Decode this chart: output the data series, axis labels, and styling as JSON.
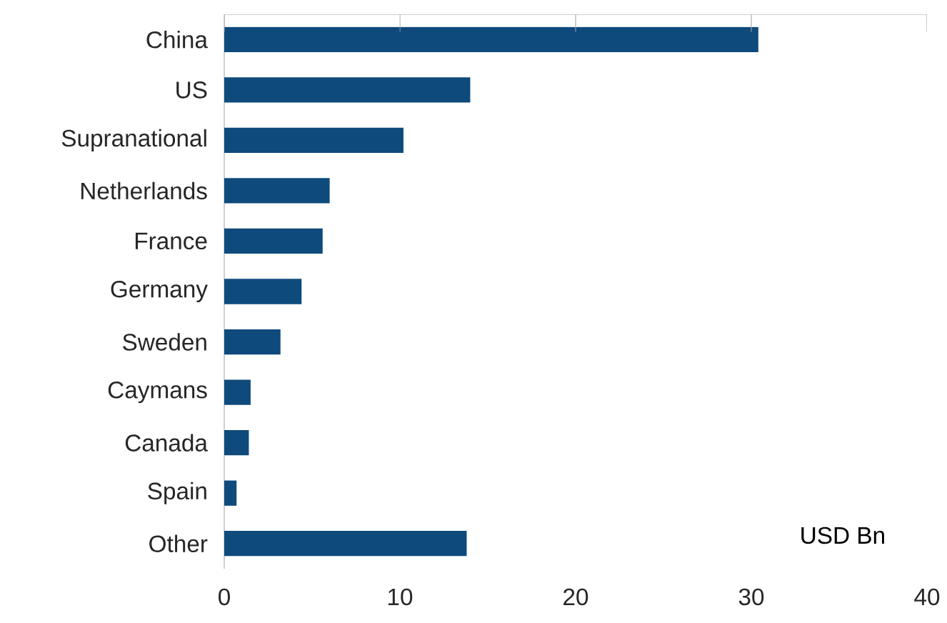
{
  "chart_data": {
    "type": "bar",
    "orientation": "horizontal",
    "xlabel": "USD Bn",
    "categories": [
      "China",
      "US",
      "Supranational",
      "Netherlands",
      "France",
      "Germany",
      "Sweden",
      "Caymans",
      "Canada",
      "Spain",
      "Other"
    ],
    "values": [
      30.4,
      14.0,
      10.2,
      6.0,
      5.6,
      4.4,
      3.2,
      1.5,
      1.4,
      0.7,
      13.8
    ],
    "color": "#0e4a7c",
    "xlim": [
      0,
      40
    ],
    "xticks": [
      0,
      10,
      20,
      30,
      40
    ]
  }
}
